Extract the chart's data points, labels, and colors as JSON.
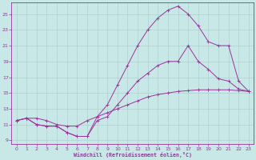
{
  "xlabel": "Windchill (Refroidissement éolien,°C)",
  "bg_color": "#c8e8e8",
  "grid_color": "#b0d0d0",
  "line_color": "#993399",
  "xlim": [
    -0.5,
    23.5
  ],
  "ylim": [
    8.5,
    26.5
  ],
  "xticks": [
    0,
    1,
    2,
    3,
    4,
    5,
    6,
    7,
    8,
    9,
    10,
    11,
    12,
    13,
    14,
    15,
    16,
    17,
    18,
    19,
    20,
    21,
    22,
    23
  ],
  "yticks": [
    9,
    11,
    13,
    15,
    17,
    19,
    21,
    23,
    25
  ],
  "line1_x": [
    0,
    1,
    2,
    3,
    4,
    5,
    6,
    7,
    8,
    9,
    10,
    11,
    12,
    13,
    14,
    15,
    16,
    17,
    18,
    19,
    20,
    21,
    22,
    23
  ],
  "line1_y": [
    11.5,
    11.8,
    11.8,
    11.5,
    11.0,
    10.8,
    10.8,
    11.5,
    12.0,
    12.5,
    13.0,
    13.5,
    14.0,
    14.5,
    14.8,
    15.0,
    15.2,
    15.3,
    15.4,
    15.4,
    15.4,
    15.4,
    15.3,
    15.2
  ],
  "line2_x": [
    0,
    1,
    2,
    3,
    4,
    5,
    6,
    7,
    8,
    9,
    10,
    11,
    12,
    13,
    14,
    15,
    16,
    17,
    18,
    19,
    20,
    21,
    22,
    23
  ],
  "line2_y": [
    11.5,
    11.8,
    11.0,
    10.8,
    10.8,
    10.0,
    9.5,
    9.5,
    11.5,
    12.0,
    13.5,
    15.0,
    16.5,
    17.5,
    18.5,
    19.0,
    19.0,
    21.0,
    19.0,
    18.0,
    16.8,
    16.5,
    15.5,
    15.2
  ],
  "line3_x": [
    0,
    1,
    2,
    3,
    4,
    5,
    6,
    7,
    8,
    9,
    10,
    11,
    12,
    13,
    14,
    15,
    16,
    17,
    18,
    19,
    20,
    21,
    22,
    23
  ],
  "line3_y": [
    11.5,
    11.8,
    11.0,
    10.8,
    10.8,
    10.0,
    9.5,
    9.5,
    12.0,
    13.5,
    16.0,
    18.5,
    21.0,
    23.0,
    24.5,
    25.5,
    26.0,
    25.0,
    23.5,
    21.5,
    21.0,
    21.0,
    16.5,
    15.2
  ]
}
